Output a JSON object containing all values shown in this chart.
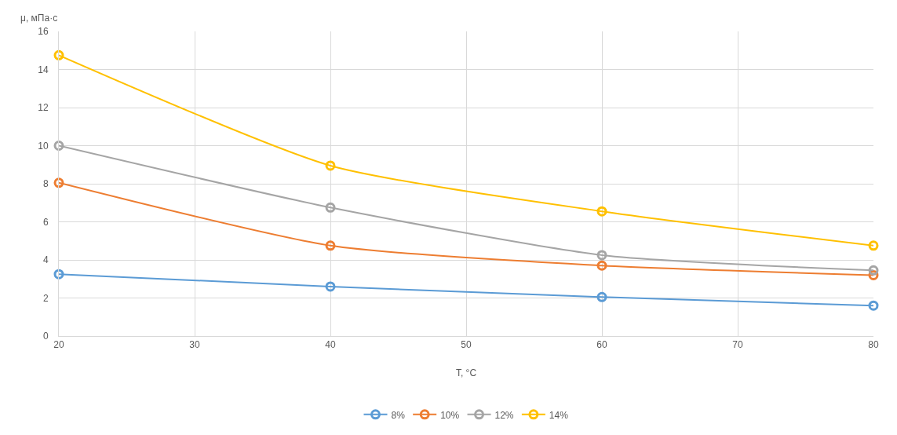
{
  "chart_data": {
    "type": "line",
    "xlabel": "T, °C",
    "ylabel": "μ, мПа·с",
    "x": [
      20,
      40,
      60,
      80
    ],
    "series": [
      {
        "name": "8%",
        "color": "#5b9bd5",
        "values": [
          3.25,
          2.6,
          2.05,
          1.6
        ]
      },
      {
        "name": "10%",
        "color": "#ed7d31",
        "values": [
          8.05,
          4.75,
          3.7,
          3.2
        ]
      },
      {
        "name": "12%",
        "color": "#a5a5a5",
        "values": [
          10.0,
          6.75,
          4.25,
          3.45
        ]
      },
      {
        "name": "14%",
        "color": "#ffc000",
        "values": [
          14.75,
          8.95,
          6.55,
          4.75
        ]
      }
    ],
    "xlim": [
      20,
      80
    ],
    "xticks": [
      20,
      30,
      40,
      50,
      60,
      70,
      80
    ],
    "ylim": [
      0,
      16
    ],
    "yticks": [
      0,
      2,
      4,
      6,
      8,
      10,
      12,
      14,
      16
    ],
    "grid": true,
    "legend": "bottom",
    "marker": "circle",
    "line_style": "solid"
  }
}
